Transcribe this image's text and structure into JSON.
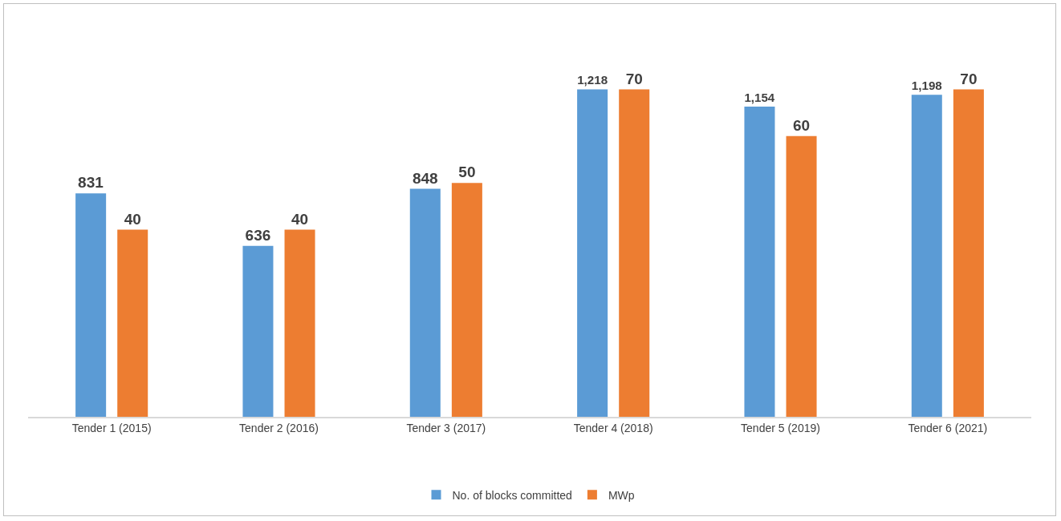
{
  "chart_data": {
    "type": "bar",
    "categories": [
      "Tender 1 (2015)",
      "Tender 2 (2016)",
      "Tender 3 (2017)",
      "Tender 4 (2018)",
      "Tender 5 (2019)",
      "Tender 6 (2021)"
    ],
    "series": [
      {
        "name": "No. of blocks committed",
        "color": "#5b9bd5",
        "values": [
          831,
          636,
          848,
          1218,
          1154,
          1198
        ],
        "value_labels": [
          "831",
          "636",
          "848",
          "1,218",
          "1,154",
          "1,198"
        ]
      },
      {
        "name": "MWp",
        "color": "#ed7d31",
        "axis": "y2",
        "values": [
          40,
          40,
          50,
          70,
          60,
          70
        ]
      }
    ],
    "tick_labels": "x",
    "data_labels": true,
    "grid": false,
    "legend": "bottom"
  }
}
